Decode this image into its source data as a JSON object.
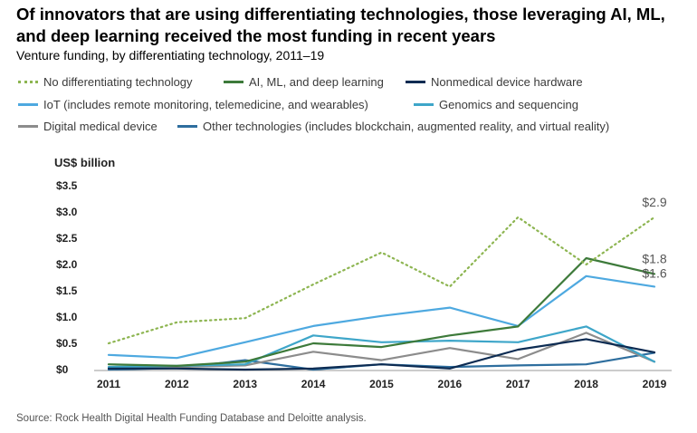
{
  "chart_data": {
    "type": "line",
    "title": "Of innovators that are using differentiating technologies, those leveraging AI, ML, and deep learning received the most funding in recent years",
    "subtitle": "Venture funding, by differentiating technology, 2011–19",
    "ylabel": "US$ billion",
    "xlabel": "",
    "x": [
      "2011",
      "2012",
      "2013",
      "2014",
      "2015",
      "2016",
      "2017",
      "2018",
      "2019"
    ],
    "ylim": [
      0,
      3.5
    ],
    "yticks": [
      "$0",
      "$0.5",
      "$1.0",
      "$1.5",
      "$2.0",
      "$2.5",
      "$3.0",
      "$3.5"
    ],
    "ytick_values": [
      0,
      0.5,
      1.0,
      1.5,
      2.0,
      2.5,
      3.0,
      3.5
    ],
    "grid": false,
    "series": [
      {
        "name": "No differentiating technology",
        "color": "#8db551",
        "dash": "dotted",
        "values": [
          0.5,
          0.9,
          0.98,
          1.62,
          2.23,
          1.58,
          2.9,
          2.0,
          2.9
        ]
      },
      {
        "name": "AI, ML, and deep learning",
        "color": "#3d7a3a",
        "dash": "solid",
        "values": [
          0.1,
          0.07,
          0.15,
          0.5,
          0.43,
          0.65,
          0.82,
          2.12,
          1.82
        ]
      },
      {
        "name": "Nonmedical device hardware",
        "color": "#0c2b52",
        "dash": "solid",
        "values": [
          0.02,
          0.02,
          0.0,
          0.02,
          0.1,
          0.02,
          0.38,
          0.58,
          0.33
        ]
      },
      {
        "name": "IoT (includes remote monitoring, telemedicine, and wearables)",
        "color": "#4ea9e0",
        "dash": "solid",
        "values": [
          0.28,
          0.22,
          0.52,
          0.83,
          1.02,
          1.18,
          0.83,
          1.78,
          1.58
        ]
      },
      {
        "name": "Genomics and sequencing",
        "color": "#3ea6c9",
        "dash": "solid",
        "values": [
          0.05,
          0.07,
          0.1,
          0.65,
          0.52,
          0.55,
          0.52,
          0.82,
          0.15
        ]
      },
      {
        "name": "Digital medical device",
        "color": "#8c8c8c",
        "dash": "solid",
        "values": [
          0.03,
          0.05,
          0.08,
          0.34,
          0.18,
          0.41,
          0.2,
          0.7,
          0.15
        ]
      },
      {
        "name": "Other technologies (includes blockchain, augmented reality, and virtual reality)",
        "color": "#2e6e9e",
        "dash": "solid",
        "values": [
          0.0,
          0.03,
          0.18,
          0.0,
          0.1,
          0.05,
          0.08,
          0.1,
          0.32
        ]
      }
    ],
    "annotations": [
      {
        "text": "$2.9",
        "series": 0,
        "index": 8
      },
      {
        "text": "$1.8",
        "series": 1,
        "index": 8
      },
      {
        "text": "$1.6",
        "series": 3,
        "index": 8
      }
    ]
  },
  "source": "Source: Rock Health Digital Health Funding Database and Deloitte analysis."
}
